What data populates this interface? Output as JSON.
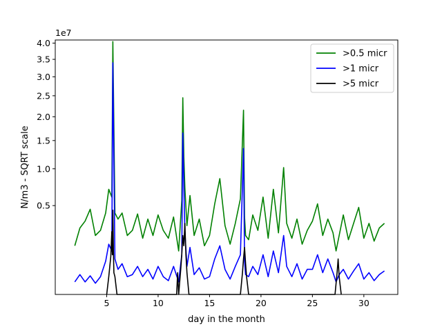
{
  "chart_data": {
    "type": "line",
    "xlabel": "day in the month",
    "ylabel": "N/m3 - SQRT scale",
    "y_scale": "sqrt",
    "y_offset_label": "1e7",
    "xlim": [
      0,
      33.3
    ],
    "ylim": [
      0,
      41000000.0
    ],
    "x_ticks": [
      5,
      10,
      15,
      20,
      25,
      30
    ],
    "y_ticks": [
      5000000.0,
      10000000.0,
      15000000.0,
      20000000.0,
      25000000.0,
      30000000.0,
      35000000.0,
      40000000.0
    ],
    "y_tick_labels": [
      "0.5",
      "1.0",
      "1.5",
      "2.0",
      "2.5",
      "3.0",
      "3.5",
      "4.0"
    ],
    "grid": false,
    "legend_position": "top-right",
    "series": [
      {
        "name": ">0.5 micr",
        "color": "#008000",
        "x": [
          1.9,
          2.4,
          2.9,
          3.4,
          3.9,
          4.4,
          4.9,
          5.2,
          5.5,
          5.6,
          5.8,
          6.1,
          6.5,
          7.0,
          7.5,
          8.0,
          8.5,
          9.0,
          9.5,
          10.0,
          10.5,
          11.0,
          11.5,
          12.0,
          12.3,
          12.4,
          12.5,
          12.6,
          12.8,
          13.1,
          13.5,
          14.0,
          14.5,
          15.0,
          15.5,
          16.0,
          16.5,
          17.0,
          17.5,
          18.0,
          18.3,
          18.4,
          18.5,
          18.8,
          19.2,
          19.7,
          20.2,
          20.7,
          21.2,
          21.7,
          22.2,
          22.5,
          23.0,
          23.5,
          24.0,
          24.5,
          25.0,
          25.5,
          26.0,
          26.5,
          27.0,
          27.3,
          27.6,
          28.0,
          28.5,
          29.0,
          29.5,
          30.0,
          30.5,
          31.0,
          31.5,
          32.0
        ],
        "y": [
          1500000.0,
          2800000.0,
          3400000.0,
          4600000.0,
          2200000.0,
          2600000.0,
          4200000.0,
          7000000.0,
          6000000.0,
          40500000.0,
          4200000.0,
          3600000.0,
          4200000.0,
          2200000.0,
          2600000.0,
          4100000.0,
          2000000.0,
          3600000.0,
          2200000.0,
          4000000.0,
          2600000.0,
          2000000.0,
          3800000.0,
          1200000.0,
          5600000.0,
          24500000.0,
          12000000.0,
          7200000.0,
          3000000.0,
          6200000.0,
          2200000.0,
          3600000.0,
          1500000.0,
          2200000.0,
          5200000.0,
          8500000.0,
          3000000.0,
          1600000.0,
          3200000.0,
          5800000.0,
          21500000.0,
          3800000.0,
          2200000.0,
          1900000.0,
          4000000.0,
          2600000.0,
          6000000.0,
          2000000.0,
          7000000.0,
          2400000.0,
          10200000.0,
          3200000.0,
          2000000.0,
          3600000.0,
          1600000.0,
          2600000.0,
          3400000.0,
          5200000.0,
          2200000.0,
          3600000.0,
          2400000.0,
          1200000.0,
          2200000.0,
          4000000.0,
          1900000.0,
          3200000.0,
          4800000.0,
          2000000.0,
          3200000.0,
          1800000.0,
          2800000.0,
          3200000.0
        ]
      },
      {
        "name": ">1 micr",
        "color": "#0000ff",
        "x": [
          1.9,
          2.4,
          2.9,
          3.4,
          3.9,
          4.4,
          4.9,
          5.2,
          5.5,
          5.6,
          5.8,
          6.1,
          6.5,
          7.0,
          7.5,
          8.0,
          8.5,
          9.0,
          9.5,
          10.0,
          10.5,
          11.0,
          11.5,
          12.0,
          12.3,
          12.4,
          12.5,
          12.6,
          12.8,
          13.1,
          13.5,
          14.0,
          14.5,
          15.0,
          15.5,
          16.0,
          16.5,
          17.0,
          17.5,
          18.0,
          18.3,
          18.4,
          18.5,
          18.8,
          19.2,
          19.7,
          20.2,
          20.7,
          21.2,
          21.7,
          22.2,
          22.5,
          23.0,
          23.5,
          24.0,
          24.5,
          25.0,
          25.5,
          26.0,
          26.5,
          27.0,
          27.3,
          27.6,
          28.0,
          28.5,
          29.0,
          29.5,
          30.0,
          30.5,
          31.0,
          31.5,
          32.0
        ],
        "y": [
          100000.0,
          250000.0,
          100000.0,
          220000.0,
          80000.0,
          200000.0,
          700000.0,
          1600000.0,
          1200000.0,
          34000000.0,
          800000.0,
          400000.0,
          600000.0,
          200000.0,
          250000.0,
          500000.0,
          200000.0,
          400000.0,
          150000.0,
          500000.0,
          200000.0,
          120000.0,
          500000.0,
          100000.0,
          1000000.0,
          16500000.0,
          7500000.0,
          2500000.0,
          500000.0,
          1400000.0,
          250000.0,
          450000.0,
          150000.0,
          200000.0,
          800000.0,
          1500000.0,
          400000.0,
          150000.0,
          500000.0,
          1000000.0,
          13500000.0,
          700000.0,
          250000.0,
          200000.0,
          500000.0,
          250000.0,
          1000000.0,
          200000.0,
          1200000.0,
          300000.0,
          2200000.0,
          500000.0,
          200000.0,
          600000.0,
          150000.0,
          400000.0,
          400000.0,
          1000000.0,
          300000.0,
          800000.0,
          300000.0,
          100000.0,
          250000.0,
          400000.0,
          150000.0,
          350000.0,
          600000.0,
          150000.0,
          300000.0,
          120000.0,
          250000.0,
          350000.0
        ]
      },
      {
        "name": ">5 micr",
        "color": "#000000",
        "x": [
          5.0,
          5.2,
          5.4,
          5.5,
          5.55,
          5.6,
          5.65,
          5.7,
          5.8,
          6.0,
          11.8,
          11.9,
          12.0,
          12.2,
          12.3,
          12.4,
          12.5,
          12.6,
          12.7,
          12.8,
          13.0,
          18.0,
          18.2,
          18.3,
          18.4,
          18.5,
          18.6,
          18.8,
          27.2,
          27.4,
          27.5,
          27.6,
          27.8
        ],
        "y": [
          0,
          200000.0,
          900000.0,
          2500000.0,
          1000000.0,
          4500000.0,
          1200000.0,
          300000.0,
          200000.0,
          0,
          0,
          300000.0,
          0,
          400000.0,
          1000000.0,
          2200000.0,
          1500000.0,
          3200000.0,
          1000000.0,
          300000.0,
          0,
          0,
          300000.0,
          800000.0,
          1400000.0,
          600000.0,
          200000.0,
          0,
          0,
          300000.0,
          800000.0,
          200000.0,
          0
        ]
      }
    ]
  }
}
